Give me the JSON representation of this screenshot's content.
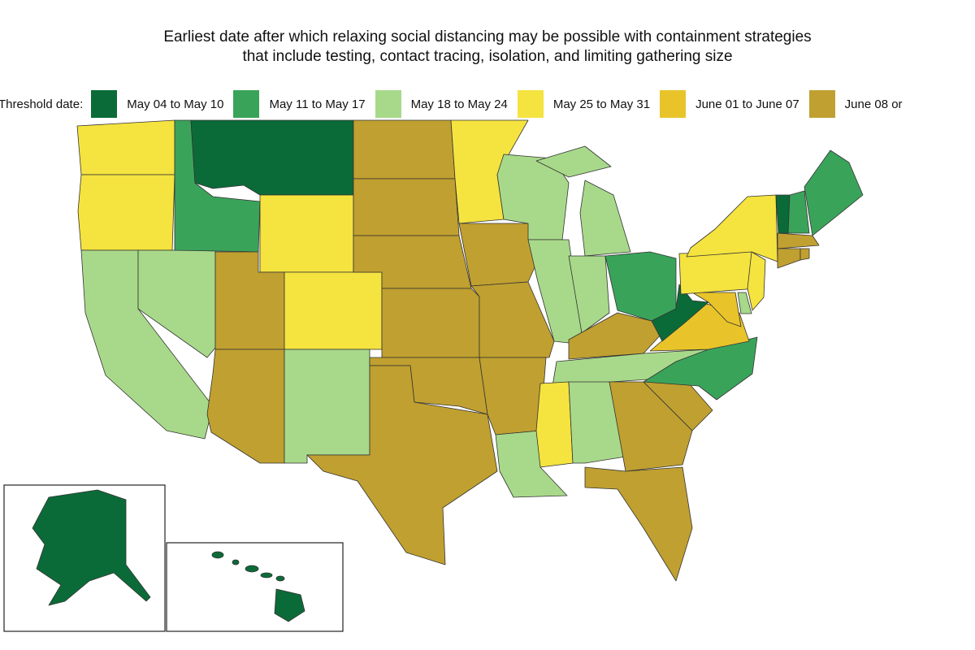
{
  "title": {
    "line1": "Earliest date after which relaxing social distancing may be possible with containment strategies",
    "line2": "that include testing, contact tracing, isolation, and limiting gathering size"
  },
  "legend": {
    "label": "Threshold date:",
    "categories": [
      {
        "label": "May 04 to May 10",
        "color": "#0b6b38"
      },
      {
        "label": "May 11 to May 17",
        "color": "#3aa35a"
      },
      {
        "label": "May 18 to May 24",
        "color": "#a8d98a"
      },
      {
        "label": "May 25 to May 31",
        "color": "#f5e33f"
      },
      {
        "label": "June 01 to June 07",
        "color": "#e8c42a"
      },
      {
        "label": "June 08 or",
        "color": "#c0a030"
      }
    ]
  },
  "states": {
    "WA": 3,
    "OR": 3,
    "CA": 2,
    "NV": 2,
    "ID": 1,
    "MT": 0,
    "WY": 3,
    "UT": 5,
    "CO": 3,
    "AZ": 5,
    "NM": 2,
    "ND": 5,
    "SD": 5,
    "NE": 5,
    "KS": 5,
    "OK": 5,
    "TX": 5,
    "MN": 3,
    "IA": 5,
    "MO": 5,
    "AR": 5,
    "LA": 2,
    "WI": 2,
    "IL": 2,
    "MI": 2,
    "IN": 2,
    "OH": 1,
    "KY": 5,
    "TN": 2,
    "MS": 3,
    "AL": 2,
    "GA": 5,
    "FL": 5,
    "SC": 5,
    "NC": 1,
    "VA": 4,
    "WV": 0,
    "MD": 4,
    "DE": 2,
    "PA": 3,
    "NJ": 3,
    "NY": 3,
    "CT": 5,
    "RI": 5,
    "MA": 5,
    "VT": 0,
    "NH": 1,
    "ME": 1,
    "AK": 0,
    "HI": 0
  }
}
